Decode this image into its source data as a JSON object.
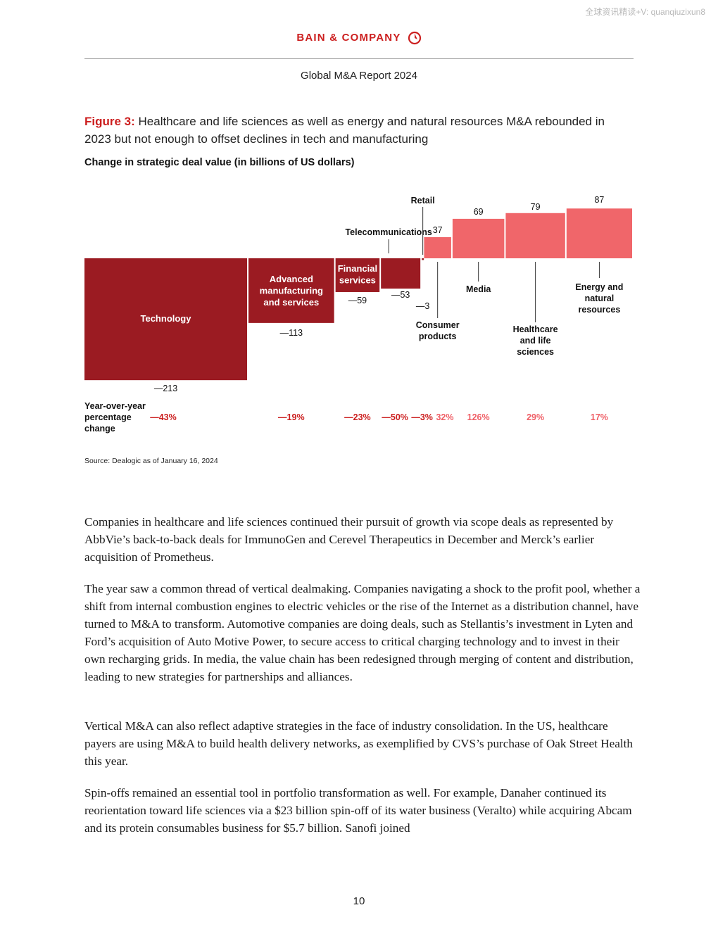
{
  "watermark": "全球资讯精读+V: quanqiuzixun8",
  "header": {
    "brand": "BAIN & COMPANY",
    "report_title": "Global M&A Report 2024"
  },
  "figure": {
    "label": "Figure 3:",
    "title": "Healthcare and life sciences as well as energy and natural resources M&A rebounded in 2023 but not enough to offset declines in tech and manufacturing",
    "subtitle": "Change in strategic deal value (in billions of US dollars)",
    "source": "Source: Dealogic as of January 16, 2024"
  },
  "chart_data": {
    "type": "bar",
    "title": "Change in strategic deal value (in billions of US dollars)",
    "categories": [
      "Technology",
      "Advanced manufacturing and services",
      "Financial services",
      "Telecommunications",
      "Retail",
      "Consumer products",
      "Media",
      "Healthcare and life sciences",
      "Energy and natural resources"
    ],
    "values": [
      -213,
      -113,
      -59,
      -53,
      -3,
      37,
      69,
      79,
      87
    ],
    "value_labels": [
      "—213",
      "—113",
      "—59",
      "—53",
      "—3",
      "37",
      "69",
      "79",
      "87"
    ],
    "yoy_label": "Year-over-year percentage change",
    "yoy_change": [
      "—43%",
      "—19%",
      "—23%",
      "—50%",
      "—3%",
      "32%",
      "126%",
      "29%",
      "17%"
    ],
    "category_labels": [
      [
        "Technology"
      ],
      [
        "Advanced",
        "manufacturing",
        "and services"
      ],
      [
        "Financial",
        "services"
      ],
      [
        "Telecommunications"
      ],
      [
        "Retail"
      ],
      [
        "Consumer",
        "products"
      ],
      [
        "Media"
      ],
      [
        "Healthcare",
        "and life",
        "sciences"
      ],
      [
        "Energy and",
        "natural",
        "resources"
      ]
    ],
    "colors": {
      "negative": "#9b1b22",
      "positive": "#f0666a",
      "negative_text": "#cc1f1f",
      "positive_text": "#ef5f66"
    },
    "legend": "none",
    "grid": false
  },
  "paragraphs": [
    "Companies in healthcare and life sciences continued their pursuit of growth via scope deals as represented by AbbVie’s back-to-back deals for ImmunoGen and Cerevel Therapeutics in December and Merck’s earlier acquisition of Prometheus.",
    "The year saw a common thread of vertical dealmaking. Companies navigating a shock to the profit pool, whether a shift from internal combustion engines to electric vehicles or the rise of the Internet as a distribution channel, have turned to M&A to transform. Automotive companies are doing deals, such as Stellantis’s investment in Lyten and Ford’s acquisition of Auto Motive Power, to secure access to critical charging technology and to invest in their own recharging grids. In media, the value chain has been redesigned through merging of content and distribution, leading to new strategies for partnerships and alliances.",
    "Vertical M&A can also reflect adaptive strategies in the face of industry consolidation. In the US, healthcare payers are using M&A to build health delivery networks, as exemplified by CVS’s purchase of Oak Street Health this year.",
    "Spin-offs remained an essential tool in portfolio transformation as well. For example, Danaher continued its reorientation toward life sciences via a $23 billion spin-off of its water business (Veralto) while acquiring Abcam and its protein consumables business for $5.7 billion. Sanofi joined"
  ],
  "footer": {
    "page_number": "10"
  }
}
